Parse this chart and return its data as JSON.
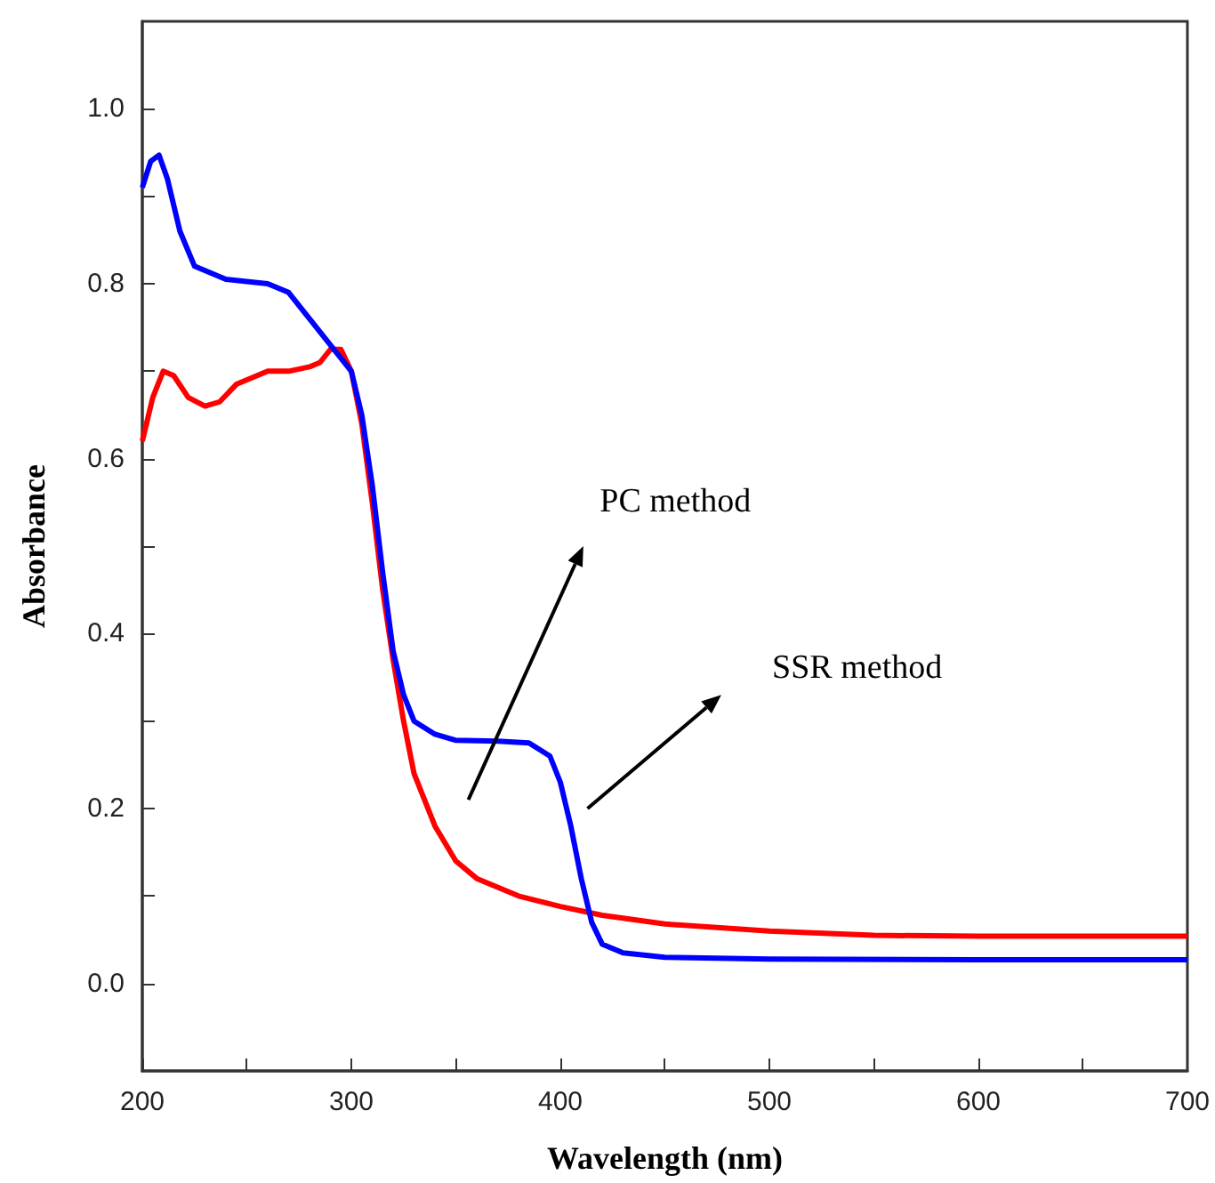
{
  "chart_data": {
    "type": "line",
    "xlabel": "Wavelength (nm)",
    "ylabel": "Absorbance",
    "annotations": [
      "PC method",
      "SSR method"
    ],
    "series": [
      {
        "color": "#ff0000",
        "x": [
          200,
          205,
          210,
          215,
          222,
          230,
          237,
          245,
          260,
          270,
          280,
          285,
          290,
          295,
          300,
          305,
          310,
          315,
          320,
          325,
          330,
          340,
          350,
          360,
          380,
          400,
          420,
          450,
          500,
          550,
          600,
          700
        ],
        "values": [
          0.62,
          0.67,
          0.7,
          0.695,
          0.67,
          0.66,
          0.665,
          0.685,
          0.7,
          0.7,
          0.705,
          0.71,
          0.725,
          0.725,
          0.7,
          0.64,
          0.55,
          0.45,
          0.37,
          0.3,
          0.24,
          0.18,
          0.14,
          0.12,
          0.1,
          0.088,
          0.078,
          0.068,
          0.06,
          0.055,
          0.054,
          0.054
        ]
      },
      {
        "color": "#0000ff",
        "x": [
          200,
          204,
          208,
          212,
          218,
          225,
          240,
          260,
          270,
          280,
          290,
          300,
          305,
          310,
          315,
          320,
          325,
          330,
          340,
          350,
          370,
          385,
          395,
          400,
          405,
          410,
          415,
          420,
          430,
          450,
          500,
          600,
          700
        ],
        "values": [
          0.91,
          0.94,
          0.947,
          0.92,
          0.86,
          0.82,
          0.805,
          0.8,
          0.79,
          0.76,
          0.73,
          0.7,
          0.65,
          0.57,
          0.47,
          0.38,
          0.33,
          0.3,
          0.285,
          0.278,
          0.277,
          0.275,
          0.26,
          0.23,
          0.18,
          0.12,
          0.07,
          0.045,
          0.035,
          0.03,
          0.028,
          0.027,
          0.027
        ]
      }
    ],
    "xlim": [
      200,
      700
    ],
    "xticks": [
      200,
      {
        "value": 250,
        "label": null
      },
      300,
      {
        "value": 350,
        "label": null
      },
      400,
      {
        "value": 450,
        "label": null
      },
      500,
      {
        "value": 550,
        "label": null
      },
      600,
      {
        "value": 650,
        "label": null
      },
      700
    ],
    "ylim": [
      -0.1,
      1.1
    ],
    "yticks": [
      {
        "value": 0,
        "label": "0.0"
      },
      {
        "value": 0.1,
        "label": null
      },
      0.2,
      {
        "value": 0.3,
        "label": null
      },
      0.4,
      {
        "value": 0.5,
        "label": null
      },
      0.6,
      {
        "value": 0.7,
        "label": null
      },
      0.8,
      {
        "value": 0.9,
        "label": null
      },
      {
        "value": 1,
        "label": "1.0"
      }
    ],
    "grid": false,
    "marker": "none",
    "line_style": "solid"
  }
}
